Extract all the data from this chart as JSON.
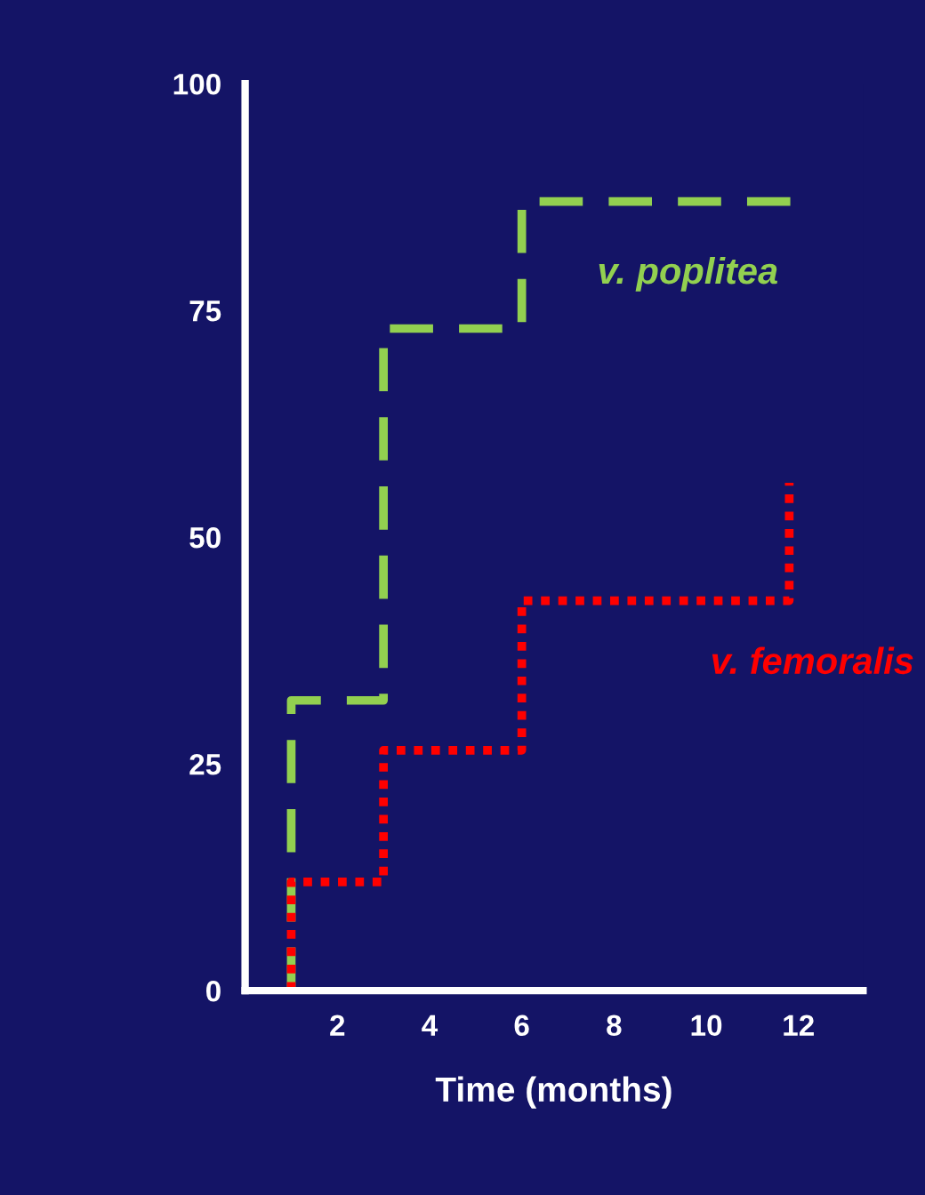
{
  "chart_data": {
    "type": "step",
    "xlabel": "Time (months)",
    "xlim": [
      0,
      13.4
    ],
    "xticks": [
      2,
      4,
      6,
      8,
      10,
      12
    ],
    "ylim": [
      0,
      100
    ],
    "yticks": [
      0,
      25,
      50,
      75,
      100
    ],
    "grid": false,
    "legend": false,
    "marker": "none",
    "series": [
      {
        "name": "v. poplitea",
        "color": "#92d050",
        "line_style": "dashed",
        "x": [
          1,
          1,
          3,
          6,
          12
        ],
        "values": [
          0,
          32,
          73,
          87,
          87
        ]
      },
      {
        "name": "v. femoralis",
        "color": "#ff0000",
        "line_style": "dotted",
        "x": [
          1,
          1,
          3,
          6,
          11.8,
          11.8
        ],
        "values": [
          0,
          12,
          26.5,
          43,
          43,
          56
        ]
      }
    ]
  }
}
